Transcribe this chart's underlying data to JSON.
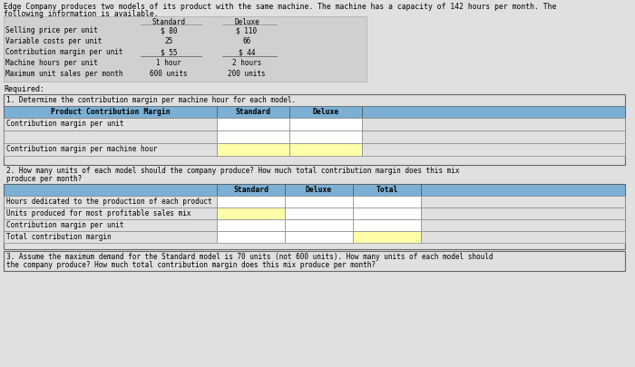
{
  "title_line1": "Edge Company produces two models of its product with the same machine. The machine has a capacity of 142 hours per month. The",
  "title_line2": "following information is available.",
  "bg_color": "#e0e0e0",
  "white": "#ffffff",
  "yellow": "#ffffaa",
  "blue_header": "#7bafd4",
  "light_gray": "#d0d0d0",
  "medium_gray": "#c0c0c0",
  "info_rows": [
    [
      "Selling price per unit",
      "$ 80",
      "$ 110"
    ],
    [
      "Variable costs per unit",
      "25",
      "66"
    ],
    [
      "Contribution margin per unit",
      "$ 55",
      "$ 44"
    ],
    [
      "Machine hours per unit",
      "1 hour",
      "2 hours"
    ],
    [
      "Maximum unit sales per month",
      "600 units",
      "200 units"
    ]
  ],
  "required_label": "Required:",
  "s1_question": "1. Determine the contribution margin per machine hour for each model.",
  "s1_header": "Product Contribution Margin",
  "s1_col1": "Standard",
  "s1_col2": "Deluxe",
  "s1_rows": [
    "Contribution margin per unit",
    "",
    "Contribution margin per machine hour"
  ],
  "s2_question_line1": "2. How many units of each model should the company produce? How much total contribution margin does this mix",
  "s2_question_line2": "produce per month?",
  "s2_col1": "Standard",
  "s2_col2": "Deluxe",
  "s2_col3": "Total",
  "s2_rows": [
    "Hours dedicated to the production of each product",
    "Units produced for most profitable sales mix",
    "Contribution margin per unit",
    "Total contribution margin"
  ],
  "s3_question_line1": "3. Assume the maximum demand for the Standard model is 70 units (not 600 units). How many units of each model should",
  "s3_question_line2": "the company produce? How much total contribution margin does this mix produce per month?"
}
